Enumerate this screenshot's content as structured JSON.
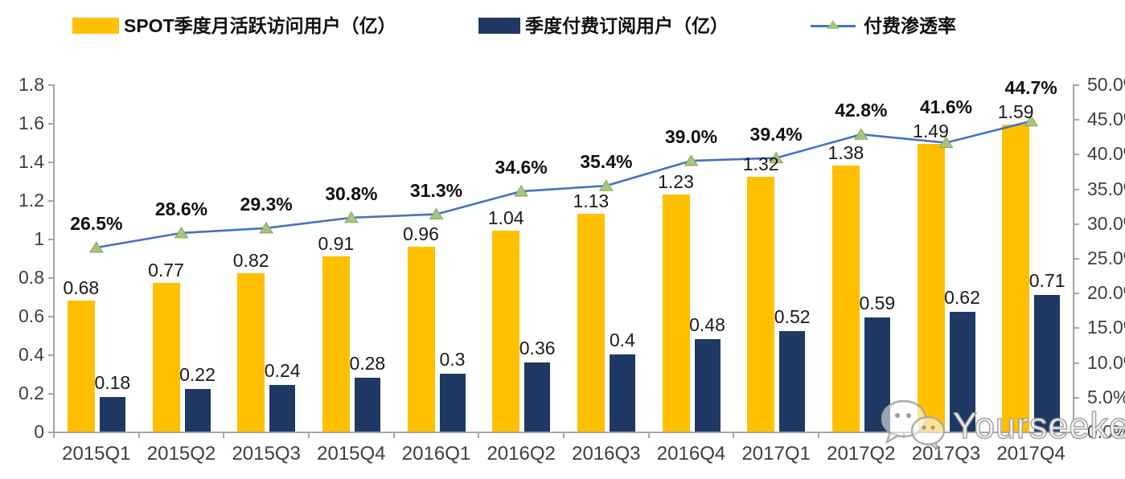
{
  "legend": [
    {
      "label": "SPOT季度月活跃访问用户（亿）",
      "color": "#FFC000",
      "type": "bar"
    },
    {
      "label": "季度付费订阅用户（亿）",
      "color": "#1F3864",
      "type": "bar"
    },
    {
      "label": "付费渗透率",
      "color": "#4472C4",
      "marker_color": "#A9C47F",
      "type": "line"
    }
  ],
  "chart_data": {
    "type": "bar",
    "subtype": "grouped-bars-with-line",
    "categories": [
      "2015Q1",
      "2015Q2",
      "2015Q3",
      "2015Q4",
      "2016Q1",
      "2016Q2",
      "2016Q3",
      "2016Q4",
      "2017Q1",
      "2017Q2",
      "2017Q3",
      "2017Q4"
    ],
    "series": [
      {
        "name": "SPOT季度月活跃访问用户（亿）",
        "type": "bar",
        "axis": "left",
        "color": "#FFC000",
        "values": [
          0.68,
          0.77,
          0.82,
          0.91,
          0.96,
          1.04,
          1.13,
          1.23,
          1.32,
          1.38,
          1.49,
          1.59
        ],
        "labels": [
          "0.68",
          "0.77",
          "0.82",
          "0.91",
          "0.96",
          "1.04",
          "1.13",
          "1.23",
          "1.32",
          "1.38",
          "1.49",
          "1.59"
        ]
      },
      {
        "name": "季度付费订阅用户（亿）",
        "type": "bar",
        "axis": "left",
        "color": "#1F3864",
        "values": [
          0.18,
          0.22,
          0.24,
          0.28,
          0.3,
          0.36,
          0.4,
          0.48,
          0.52,
          0.59,
          0.62,
          0.71
        ],
        "labels": [
          "0.18",
          "0.22",
          "0.24",
          "0.28",
          "0.3",
          "0.36",
          "0.4",
          "0.48",
          "0.52",
          "0.59",
          "0.62",
          "0.71"
        ]
      },
      {
        "name": "付费渗透率",
        "type": "line",
        "axis": "right",
        "color": "#4472C4",
        "marker": "triangle",
        "marker_color": "#A9C47F",
        "values": [
          26.5,
          28.6,
          29.3,
          30.8,
          31.3,
          34.6,
          35.4,
          39.0,
          39.4,
          42.8,
          41.6,
          44.7
        ],
        "labels": [
          "26.5%",
          "28.6%",
          "29.3%",
          "30.8%",
          "31.3%",
          "34.6%",
          "35.4%",
          "39.0%",
          "39.4%",
          "42.8%",
          "41.6%",
          "44.7%"
        ]
      }
    ],
    "left_axis": {
      "min": 0,
      "max": 1.8,
      "step": 0.2,
      "tick_labels": [
        "0",
        "0.2",
        "0.4",
        "0.6",
        "0.8",
        "1",
        "1.2",
        "1.4",
        "1.6",
        "1.8"
      ]
    },
    "right_axis": {
      "min": 0,
      "max": 50,
      "step": 5,
      "tick_labels": [
        "0.0%",
        "5.0%",
        "10.0%",
        "15.0%",
        "20.0%",
        "25.0%",
        "30.0%",
        "35.0%",
        "40.0%",
        "45.0%",
        "50.0%"
      ]
    },
    "grid": false,
    "legend_position": "top",
    "title": "",
    "xlabel": "",
    "ylabel": ""
  },
  "watermark": {
    "text": "Yourseeker",
    "icon": "wechat-icon"
  },
  "colors": {
    "axis": "#a6a6a6",
    "axis_text": "#3f3f3f",
    "data_label": "#1a1a1a",
    "background": "#ffffff"
  }
}
